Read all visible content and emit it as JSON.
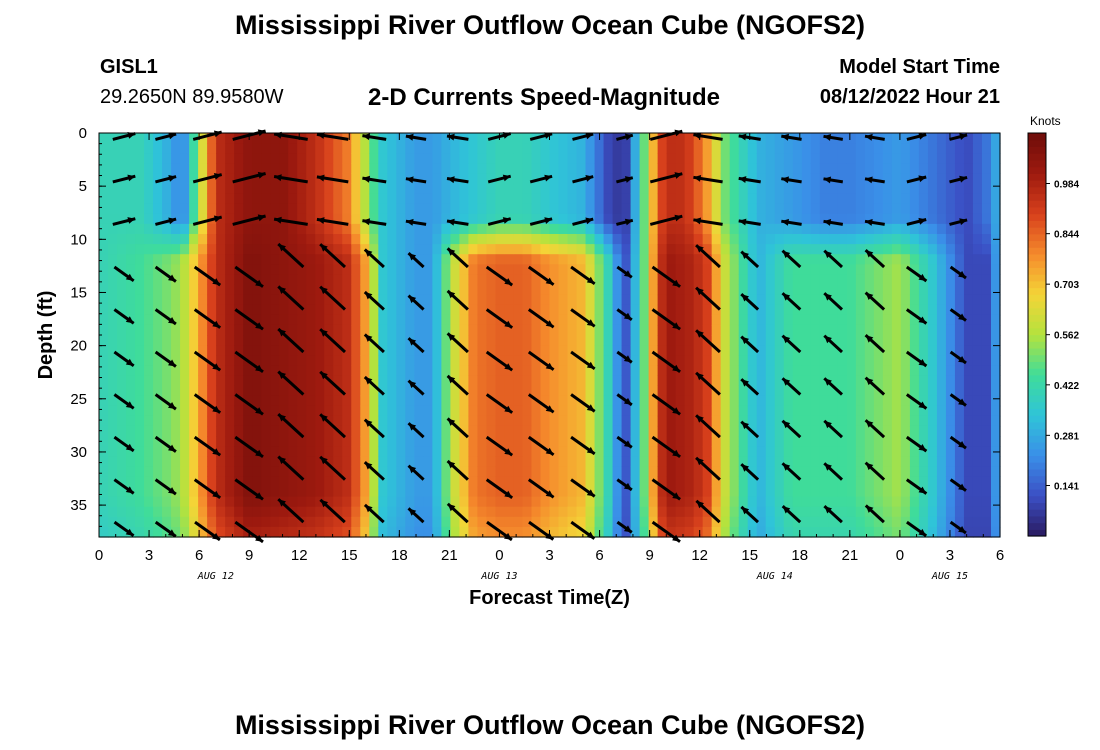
{
  "header": {
    "title": "Mississippi River Outflow Ocean Cube (NGOFS2)",
    "station_id": "GISL1",
    "station_coords": "29.2650N  89.9580W",
    "product": "2-D Currents Speed-Magnitude",
    "model_label": "Model Start Time",
    "model_time": "08/12/2022 Hour 21"
  },
  "footer": {
    "title": "Mississippi River Outflow Ocean Cube (NGOFS2)"
  },
  "colors": {
    "scale": [
      "#2a1a5e",
      "#3b4fc4",
      "#3a8fe8",
      "#2fc4d8",
      "#3fdc9a",
      "#b4e23e",
      "#f4d437",
      "#f58a2c",
      "#d7401c",
      "#9e1a0f",
      "#6e0d0a"
    ]
  },
  "chart_data": {
    "type": "heatmap",
    "title": "2-D Currents Speed-Magnitude",
    "xlabel": "Forecast Time(Z)",
    "ylabel": "Depth (ft)",
    "ylim": [
      0,
      38
    ],
    "xlim": [
      0,
      54
    ],
    "x_ticks": [
      0,
      3,
      6,
      9,
      12,
      15,
      18,
      21,
      24,
      27,
      30,
      33,
      36,
      39,
      42,
      45,
      48,
      51,
      54
    ],
    "x_tick_labels": [
      "0",
      "3",
      "6",
      "9",
      "12",
      "15",
      "18",
      "21",
      "0",
      "3",
      "6",
      "9",
      "12",
      "15",
      "18",
      "21",
      "0",
      "3",
      "6"
    ],
    "y_ticks": [
      0,
      5,
      10,
      15,
      20,
      25,
      30,
      35
    ],
    "y_tick_labels": [
      "0",
      "5",
      "10",
      "15",
      "20",
      "25",
      "30",
      "35"
    ],
    "date_labels": [
      {
        "label": "AUG 12",
        "x": 7.0
      },
      {
        "label": "AUG 13",
        "x": 24.0
      },
      {
        "label": "AUG 14",
        "x": 40.5
      },
      {
        "label": "AUG 15",
        "x": 51.0
      }
    ],
    "colorbar": {
      "unit": "Knots",
      "min": 0.0,
      "max": 1.125,
      "ticks": [
        0.141,
        0.281,
        0.422,
        0.562,
        0.703,
        0.844,
        0.984
      ]
    },
    "series": [
      {
        "name": "speed",
        "time": [
          0,
          2.5,
          4,
          5,
          6,
          7,
          9,
          11,
          13,
          15,
          16,
          17,
          18,
          19,
          20,
          21,
          22.5,
          24,
          25.5,
          27,
          29,
          30.5,
          31.5,
          32.7,
          33.5,
          34,
          34.8,
          35.6,
          36.5,
          37.5,
          39.5,
          41.5,
          43.5,
          45,
          46.5,
          48,
          50,
          52,
          53.5,
          54
        ],
        "upper_knots": [
          0.4,
          0.4,
          0.3,
          0.2,
          0.55,
          0.95,
          1.05,
          1.05,
          0.95,
          0.8,
          0.55,
          0.35,
          0.3,
          0.25,
          0.25,
          0.3,
          0.35,
          0.4,
          0.4,
          0.35,
          0.3,
          0.1,
          0.05,
          0.5,
          0.85,
          0.95,
          0.95,
          0.9,
          0.75,
          0.5,
          0.3,
          0.25,
          0.2,
          0.2,
          0.22,
          0.25,
          0.18,
          0.1,
          0.2,
          0.35
        ],
        "lower_knots": [
          0.4,
          0.45,
          0.5,
          0.55,
          0.75,
          0.95,
          1.08,
          1.05,
          1.02,
          0.95,
          0.75,
          0.35,
          0.3,
          0.25,
          0.25,
          0.55,
          0.82,
          0.85,
          0.85,
          0.78,
          0.72,
          0.4,
          0.1,
          0.5,
          0.9,
          1.02,
          1.0,
          0.98,
          0.9,
          0.6,
          0.3,
          0.45,
          0.45,
          0.45,
          0.5,
          0.55,
          0.35,
          0.1,
          0.1,
          0.4
        ]
      }
    ]
  }
}
